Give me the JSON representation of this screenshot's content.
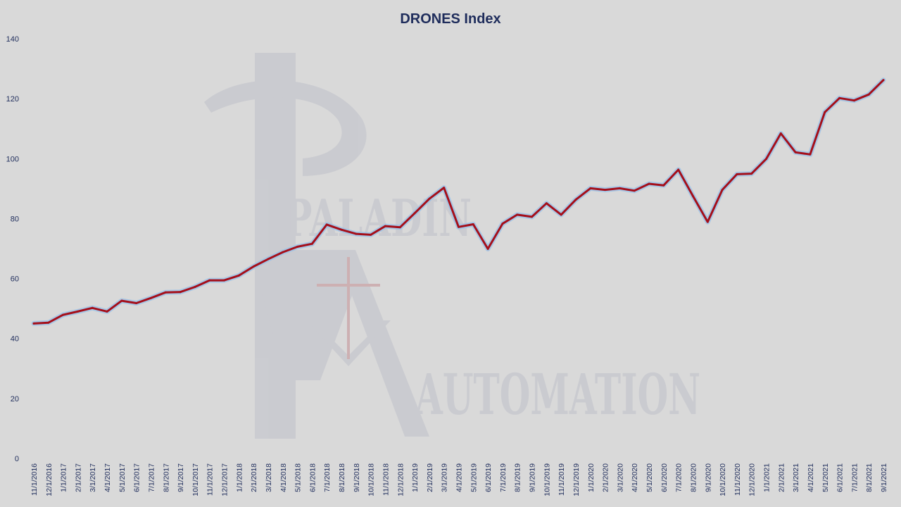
{
  "watermark": {
    "line1": "PALADIN",
    "line2": "AUTOMATION"
  },
  "colors": {
    "background": "#d9d9d9",
    "line": "#a50f1a",
    "line_glow": "#9dc3e6",
    "text": "#1f2d5c",
    "watermark": "#c6c7ce",
    "watermark_cross": "#c9a3a6"
  },
  "chart_data": {
    "type": "line",
    "title": "DRONES Index",
    "xlabel": "",
    "ylabel": "",
    "ylim": [
      0,
      140
    ],
    "yticks": [
      0,
      20,
      40,
      60,
      80,
      100,
      120,
      140
    ],
    "grid": false,
    "legend": "none",
    "categories": [
      "11/1/2016",
      "12/1/2016",
      "1/1/2017",
      "2/1/2017",
      "3/1/2017",
      "4/1/2017",
      "5/1/2017",
      "6/1/2017",
      "7/1/2017",
      "8/1/2017",
      "9/1/2017",
      "10/1/2017",
      "11/1/2017",
      "12/1/2017",
      "1/1/2018",
      "2/1/2018",
      "3/1/2018",
      "4/1/2018",
      "5/1/2018",
      "6/1/2018",
      "7/1/2018",
      "8/1/2018",
      "9/1/2018",
      "10/1/2018",
      "11/1/2018",
      "12/1/2018",
      "1/1/2019",
      "2/1/2019",
      "3/1/2019",
      "4/1/2019",
      "5/1/2019",
      "6/1/2019",
      "7/1/2019",
      "8/1/2019",
      "9/1/2019",
      "10/1/2019",
      "11/1/2019",
      "12/1/2019",
      "1/1/2020",
      "2/1/2020",
      "3/1/2020",
      "4/1/2020",
      "5/1/2020",
      "6/1/2020",
      "7/1/2020",
      "8/1/2020",
      "9/1/2020",
      "10/1/2020",
      "11/1/2020",
      "12/1/2020",
      "1/1/2021",
      "2/1/2021",
      "3/1/2021",
      "4/1/2021",
      "5/1/2021",
      "6/1/2021",
      "7/1/2021",
      "8/1/2021",
      "9/1/2021"
    ],
    "series": [
      {
        "values": [
          45,
          45.3,
          47.9,
          49,
          50.2,
          49,
          52.6,
          51.8,
          53.5,
          55.4,
          55.5,
          57.2,
          59.4,
          59.4,
          61,
          64,
          66.5,
          68.8,
          70.6,
          71.6,
          78,
          76.3,
          74.9,
          74.6,
          77.5,
          77.1,
          81.8,
          86.6,
          90.3,
          77.2,
          78.1,
          69.9,
          78.3,
          81.3,
          80.6,
          85.1,
          81.3,
          86.3,
          90.1,
          89.6,
          90.1,
          89.3,
          91.6,
          91.1,
          96.3,
          87.5,
          78.9,
          89.6,
          94.8,
          95,
          99.9,
          108.4,
          102.1,
          101.4,
          115.5,
          120.2,
          119.4,
          121.4,
          126.2
        ]
      }
    ]
  }
}
